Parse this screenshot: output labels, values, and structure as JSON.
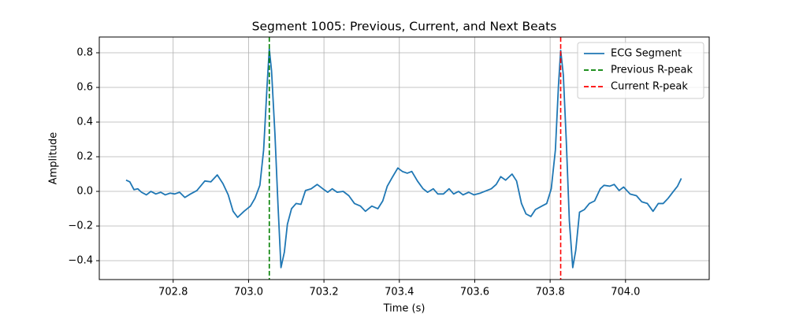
{
  "chart_data": {
    "type": "line",
    "title": "Segment 1005: Previous, Current, and Next Beats",
    "xlabel": "Time (s)",
    "ylabel": "Amplitude",
    "x": [
      702.675,
      702.685,
      702.696,
      702.706,
      702.716,
      702.729,
      702.741,
      702.754,
      702.767,
      702.779,
      702.792,
      702.804,
      702.817,
      702.831,
      702.846,
      702.863,
      702.884,
      702.9,
      702.917,
      702.932,
      702.946,
      702.959,
      702.971,
      702.988,
      703.005,
      703.017,
      703.03,
      703.04,
      703.049,
      703.055,
      703.061,
      703.07,
      703.078,
      703.086,
      703.095,
      703.103,
      703.114,
      703.126,
      703.139,
      703.151,
      703.166,
      703.182,
      703.197,
      703.21,
      703.222,
      703.235,
      703.251,
      703.266,
      703.281,
      703.297,
      703.31,
      703.327,
      703.343,
      703.356,
      703.368,
      703.381,
      703.396,
      703.408,
      703.421,
      703.433,
      703.448,
      703.463,
      703.475,
      703.49,
      703.502,
      703.517,
      703.532,
      703.544,
      703.557,
      703.569,
      703.584,
      703.598,
      703.615,
      703.632,
      703.644,
      703.657,
      703.669,
      703.682,
      703.699,
      703.711,
      703.724,
      703.736,
      703.749,
      703.761,
      703.778,
      703.791,
      703.803,
      703.814,
      703.822,
      703.828,
      703.835,
      703.843,
      703.851,
      703.86,
      703.868,
      703.878,
      703.891,
      703.904,
      703.918,
      703.933,
      703.943,
      703.958,
      703.97,
      703.983,
      703.995,
      704.012,
      704.029,
      704.043,
      704.058,
      704.073,
      704.087,
      704.1,
      704.113,
      704.127,
      704.138,
      704.148
    ],
    "series": [
      {
        "name": "ECG Segment",
        "color": "#1f77b4",
        "values": [
          0.065,
          0.055,
          0.01,
          0.015,
          -0.005,
          -0.02,
          0.0,
          -0.015,
          -0.005,
          -0.02,
          -0.01,
          -0.015,
          -0.005,
          -0.035,
          -0.015,
          0.005,
          0.06,
          0.055,
          0.095,
          0.045,
          -0.02,
          -0.115,
          -0.15,
          -0.115,
          -0.085,
          -0.04,
          0.035,
          0.24,
          0.605,
          0.823,
          0.695,
          0.33,
          -0.075,
          -0.44,
          -0.35,
          -0.19,
          -0.1,
          -0.07,
          -0.075,
          0.005,
          0.015,
          0.04,
          0.015,
          -0.005,
          0.015,
          -0.005,
          0.0,
          -0.025,
          -0.07,
          -0.085,
          -0.115,
          -0.085,
          -0.1,
          -0.055,
          0.03,
          0.08,
          0.135,
          0.115,
          0.105,
          0.115,
          0.06,
          0.015,
          -0.005,
          0.015,
          -0.015,
          -0.015,
          0.015,
          -0.015,
          0.0,
          -0.02,
          -0.005,
          -0.02,
          -0.01,
          0.005,
          0.015,
          0.04,
          0.085,
          0.065,
          0.1,
          0.06,
          -0.07,
          -0.13,
          -0.145,
          -0.105,
          -0.085,
          -0.07,
          0.015,
          0.24,
          0.605,
          0.814,
          0.673,
          0.285,
          -0.17,
          -0.44,
          -0.34,
          -0.12,
          -0.105,
          -0.07,
          -0.055,
          0.015,
          0.035,
          0.03,
          0.04,
          0.005,
          0.025,
          -0.015,
          -0.025,
          -0.06,
          -0.07,
          -0.115,
          -0.07,
          -0.07,
          -0.04,
          0.0,
          0.03,
          0.075
        ]
      }
    ],
    "vlines": [
      {
        "name": "Previous R-peak",
        "color": "#008000",
        "x": 703.055
      },
      {
        "name": "Current R-peak",
        "color": "#ff0000",
        "x": 703.828
      }
    ],
    "xlim": [
      702.604,
      704.222
    ],
    "xticks": [
      702.8,
      {
        "value": 703.0,
        "label": "703.0"
      },
      703.2,
      703.4,
      703.6,
      703.8,
      {
        "value": 704.0,
        "label": "704.0"
      }
    ],
    "ylim": [
      -0.509,
      0.891
    ],
    "yticks": [
      {
        "value": -0.4,
        "label": "−0.4"
      },
      {
        "value": -0.2,
        "label": "−0.2"
      },
      {
        "value": 0,
        "label": "0.0"
      },
      0.2,
      0.4,
      0.6,
      0.8
    ],
    "grid": true,
    "legend": "upper right"
  }
}
